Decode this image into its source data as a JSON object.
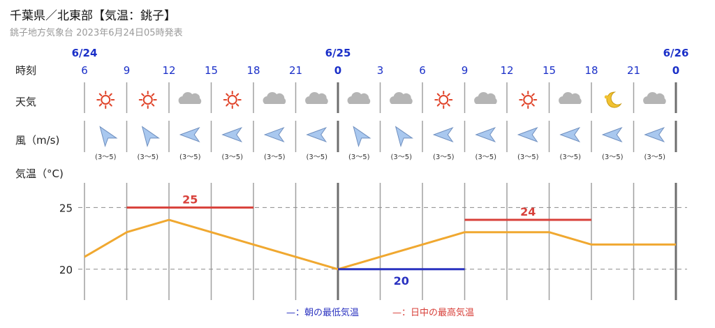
{
  "header": {
    "title": "千葉県／北東部【気温：銚子】",
    "subtitle": "銚子地方気象台 2023年6月24日05時発表"
  },
  "rows": {
    "time_label": "時刻",
    "weather_label": "天気",
    "wind_label": "風（m/s)",
    "temp_label": "気温（°C)"
  },
  "dates": [
    "6/24",
    "6/25",
    "6/26"
  ],
  "hours": [
    "6",
    "9",
    "12",
    "15",
    "18",
    "21",
    "0",
    "3",
    "6",
    "9",
    "12",
    "15",
    "18",
    "21",
    "0"
  ],
  "weather": [
    "sunny-icon",
    "sunny-icon",
    "cloudy-icon",
    "sunny-icon",
    "cloudy-icon",
    "cloudy-icon",
    "cloudy-icon",
    "cloudy-icon",
    "sunny-icon",
    "cloudy-icon",
    "sunny-icon",
    "cloudy-icon",
    "clear-night-icon",
    "cloudy-icon"
  ],
  "wind": {
    "directions": [
      "sw",
      "sw",
      "e",
      "e",
      "e",
      "e",
      "sw",
      "sw",
      "e",
      "e",
      "e",
      "e",
      "e",
      "e"
    ],
    "speed_label": "(3〜5)"
  },
  "legend": {
    "min_label": "—：朝の最低気温",
    "max_label": "—：日中の最高気温"
  },
  "colors": {
    "date_blue": "#1a2fc8",
    "temp_line": "#f0a830",
    "max_red": "#d8403a",
    "min_blue": "#2a32c0",
    "sun": "#e0442a",
    "cloud": "#b5b5b5",
    "wind_fill": "#a9c8ef",
    "wind_stroke": "#6f8fbf"
  },
  "chart_data": {
    "type": "line",
    "x": [
      "6/24 6",
      "6/24 9",
      "6/24 12",
      "6/24 15",
      "6/24 18",
      "6/24 21",
      "6/25 0",
      "6/25 3",
      "6/25 6",
      "6/25 9",
      "6/25 12",
      "6/25 15",
      "6/25 18",
      "6/25 21",
      "6/26 0"
    ],
    "series": [
      {
        "values": [
          21,
          23,
          24,
          23,
          22,
          21,
          20,
          21,
          22,
          23,
          23,
          23,
          22,
          22,
          22
        ]
      }
    ],
    "yticks": [
      20,
      25
    ],
    "ylim": [
      17.5,
      27
    ],
    "max_temps": [
      {
        "value": 25,
        "from": "6/24 9",
        "to": "6/24 18",
        "label": "25"
      },
      {
        "value": 24,
        "from": "6/25 9",
        "to": "6/25 18",
        "label": "24"
      }
    ],
    "min_temps": [
      {
        "value": 20,
        "from": "6/25 0",
        "to": "6/25 9",
        "label": "20"
      }
    ],
    "grid": true
  }
}
